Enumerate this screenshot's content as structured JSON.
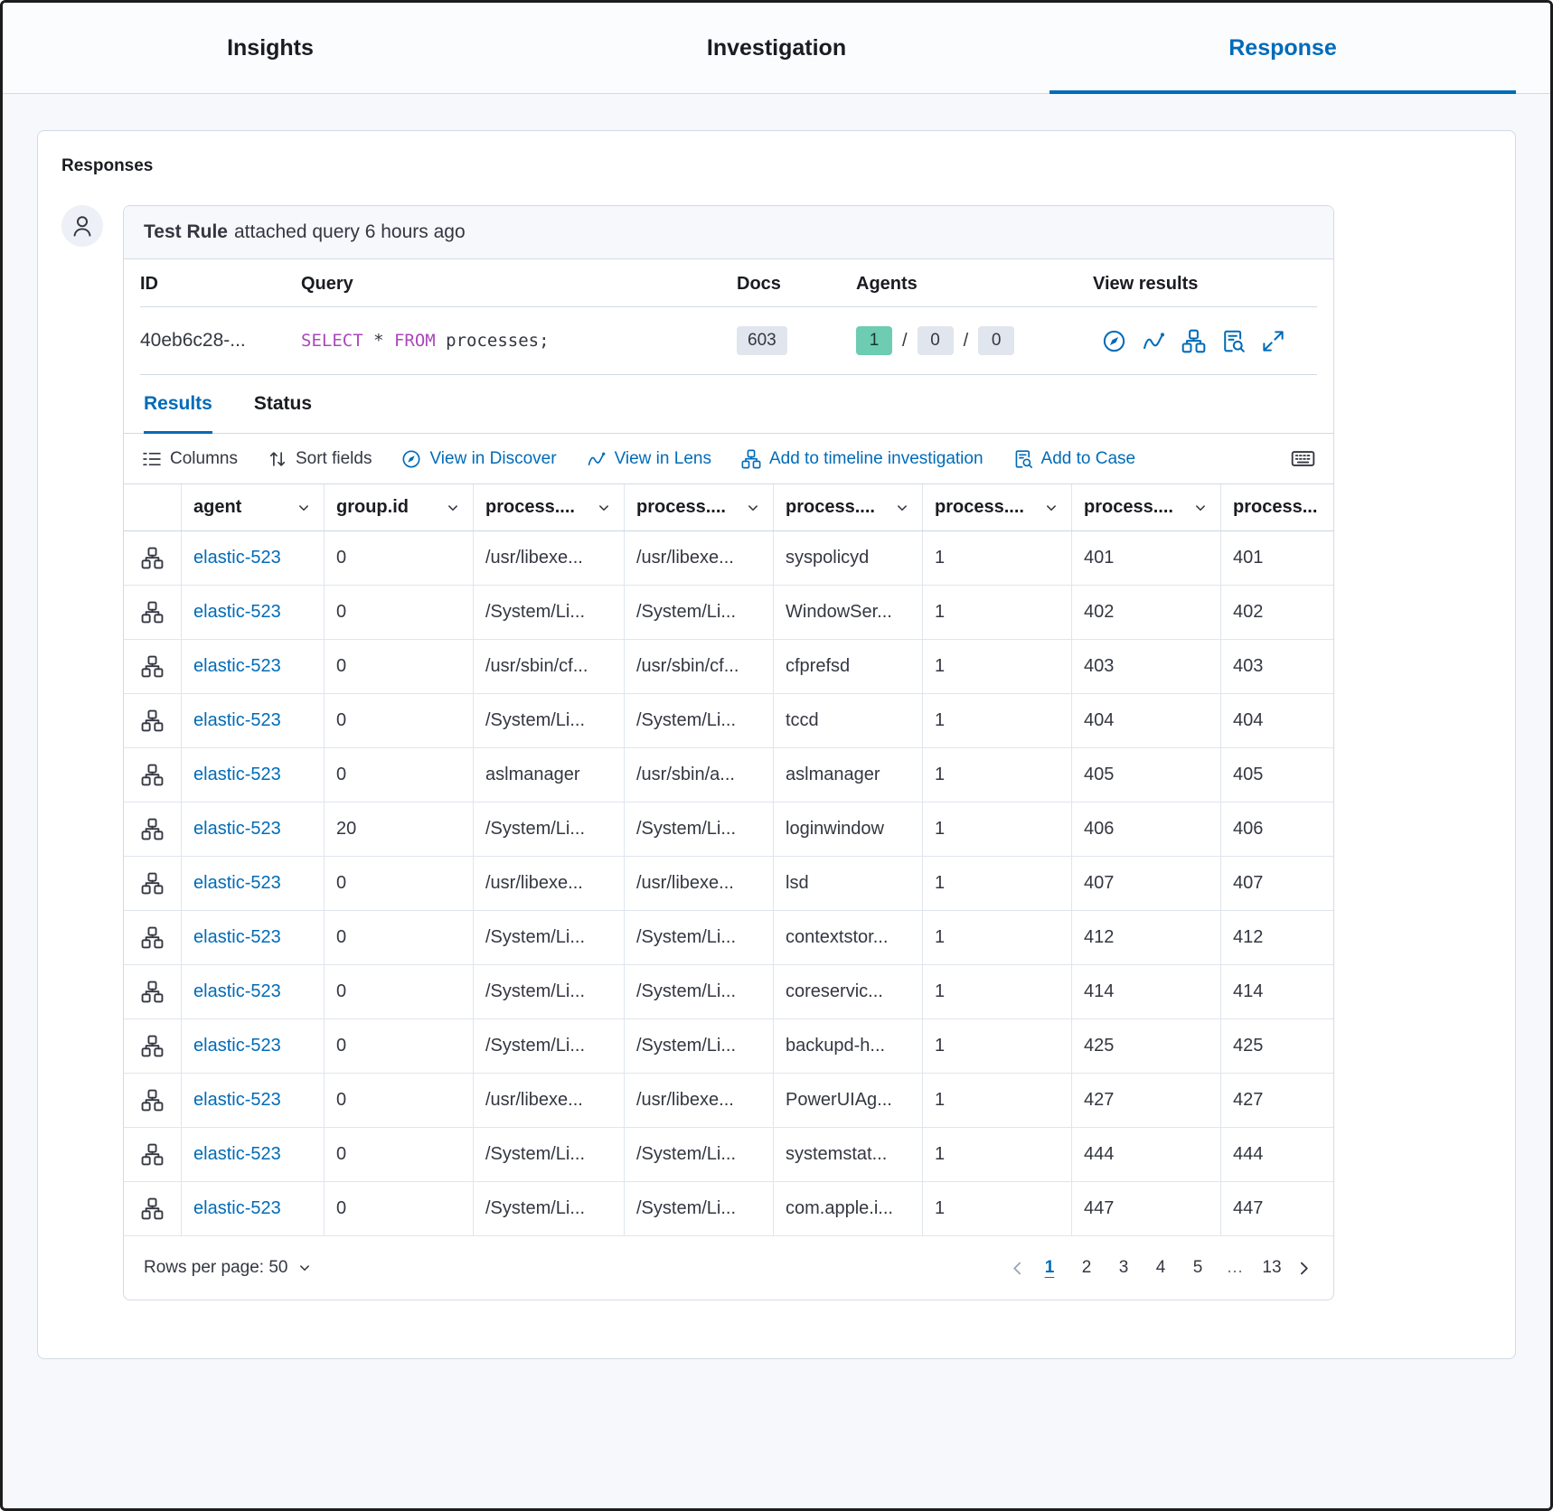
{
  "colors": {
    "primary": "#006bb8",
    "keyword": "#ab47bc",
    "teal_badge_bg": "#6dccb1",
    "gray_badge_bg": "#e0e5ee"
  },
  "top_tabs": [
    {
      "label": "Insights",
      "active": false
    },
    {
      "label": "Investigation",
      "active": false
    },
    {
      "label": "Response",
      "active": true
    }
  ],
  "section_title": "Responses",
  "comment": {
    "author": "Test Rule",
    "detail": "attached query 6 hours ago"
  },
  "summary": {
    "headers": [
      "ID",
      "Query",
      "Docs",
      "Agents",
      "View results"
    ],
    "id": "40eb6c28-...",
    "query": [
      {
        "text": "SELECT",
        "keyword": true
      },
      {
        "text": " * ",
        "keyword": false
      },
      {
        "text": "FROM",
        "keyword": true
      },
      {
        "text": " processes;",
        "keyword": false
      }
    ],
    "docs": "603",
    "agents": {
      "ok": "1",
      "separator": "/",
      "pending": "0",
      "failed": "0"
    },
    "view_results_icons": [
      "discover-icon",
      "lens-icon",
      "timeline-icon",
      "case-icon",
      "open-in-new-icon"
    ]
  },
  "result_tabs": [
    {
      "label": "Results",
      "active": true
    },
    {
      "label": "Status",
      "active": false
    }
  ],
  "toolbar": {
    "columns": "Columns",
    "sort_fields": "Sort fields",
    "view_in_discover": "View in Discover",
    "view_in_lens": "View in Lens",
    "add_to_timeline": "Add to timeline investigation",
    "add_to_case": "Add to Case",
    "right_icon": "keyboard-icon"
  },
  "grid": {
    "columns": [
      "agent",
      "group.id",
      "process....",
      "process....",
      "process....",
      "process....",
      "process....",
      "process..."
    ],
    "row_icon": "analyze-event-icon",
    "rows": [
      [
        "elastic-523",
        "0",
        "/usr/libexe...",
        "/usr/libexe...",
        "syspolicyd",
        "1",
        "401",
        "401"
      ],
      [
        "elastic-523",
        "0",
        "/System/Li...",
        "/System/Li...",
        "WindowSer...",
        "1",
        "402",
        "402"
      ],
      [
        "elastic-523",
        "0",
        "/usr/sbin/cf...",
        "/usr/sbin/cf...",
        "cfprefsd",
        "1",
        "403",
        "403"
      ],
      [
        "elastic-523",
        "0",
        "/System/Li...",
        "/System/Li...",
        "tccd",
        "1",
        "404",
        "404"
      ],
      [
        "elastic-523",
        "0",
        "aslmanager",
        "/usr/sbin/a...",
        "aslmanager",
        "1",
        "405",
        "405"
      ],
      [
        "elastic-523",
        "20",
        "/System/Li...",
        "/System/Li...",
        "loginwindow",
        "1",
        "406",
        "406"
      ],
      [
        "elastic-523",
        "0",
        "/usr/libexe...",
        "/usr/libexe...",
        "lsd",
        "1",
        "407",
        "407"
      ],
      [
        "elastic-523",
        "0",
        "/System/Li...",
        "/System/Li...",
        "contextstor...",
        "1",
        "412",
        "412"
      ],
      [
        "elastic-523",
        "0",
        "/System/Li...",
        "/System/Li...",
        "coreservic...",
        "1",
        "414",
        "414"
      ],
      [
        "elastic-523",
        "0",
        "/System/Li...",
        "/System/Li...",
        "backupd-h...",
        "1",
        "425",
        "425"
      ],
      [
        "elastic-523",
        "0",
        "/usr/libexe...",
        "/usr/libexe...",
        "PowerUIAg...",
        "1",
        "427",
        "427"
      ],
      [
        "elastic-523",
        "0",
        "/System/Li...",
        "/System/Li...",
        "systemstat...",
        "1",
        "444",
        "444"
      ],
      [
        "elastic-523",
        "0",
        "/System/Li...",
        "/System/Li...",
        "com.apple.i...",
        "1",
        "447",
        "447"
      ]
    ]
  },
  "footer": {
    "rows_per_page": "Rows per page: 50",
    "pages": [
      "1",
      "2",
      "3",
      "4",
      "5",
      "…",
      "13"
    ],
    "active_page": "1"
  }
}
